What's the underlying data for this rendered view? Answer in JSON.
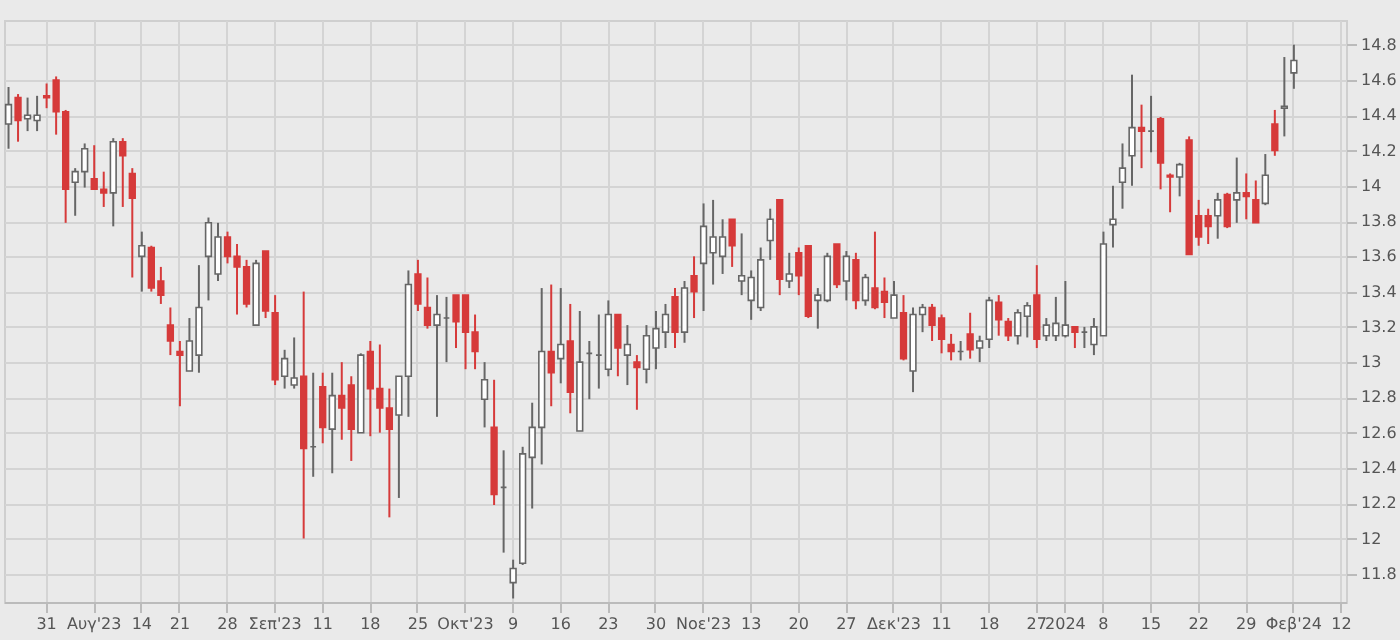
{
  "chart_data": {
    "type": "candlestick",
    "categories": [
      null,
      null,
      null,
      null,
      "31",
      null,
      null,
      null,
      null,
      "Αυγ'23",
      null,
      null,
      null,
      null,
      "14",
      null,
      null,
      null,
      "21",
      null,
      null,
      null,
      null,
      "28",
      null,
      null,
      null,
      null,
      "Σεπ'23",
      null,
      null,
      null,
      null,
      "11",
      null,
      null,
      null,
      null,
      "18",
      null,
      null,
      null,
      null,
      "25",
      null,
      null,
      null,
      null,
      "Οκτ'23",
      null,
      null,
      null,
      null,
      "9",
      null,
      null,
      null,
      null,
      "16",
      null,
      null,
      null,
      null,
      "23",
      null,
      null,
      null,
      null,
      "30",
      null,
      null,
      null,
      null,
      "Νοε'23",
      null,
      null,
      null,
      null,
      "13",
      null,
      null,
      null,
      null,
      "20",
      null,
      null,
      null,
      null,
      "27",
      null,
      null,
      null,
      null,
      "Δεκ'23",
      null,
      null,
      null,
      null,
      "11",
      null,
      null,
      null,
      null,
      "18",
      null,
      null,
      null,
      null,
      "27",
      null,
      null,
      "2024",
      null,
      null,
      null,
      "8",
      null,
      null,
      null,
      null,
      "15",
      null,
      null,
      null,
      null,
      "22",
      null,
      null,
      null,
      null,
      "29",
      null,
      null,
      null,
      null,
      "Φεβ'24",
      null,
      null,
      null,
      null,
      "12"
    ],
    "ohlc": [
      [
        14.35,
        14.56,
        14.21,
        14.46
      ],
      [
        14.5,
        14.52,
        14.25,
        14.37
      ],
      [
        14.38,
        14.5,
        14.31,
        14.4
      ],
      [
        14.37,
        14.51,
        14.31,
        14.4
      ],
      [
        14.51,
        14.58,
        14.44,
        14.5
      ],
      [
        14.6,
        14.62,
        14.29,
        14.42
      ],
      [
        14.42,
        14.43,
        13.79,
        13.98
      ],
      [
        14.02,
        14.1,
        13.83,
        14.08
      ],
      [
        14.08,
        14.24,
        13.99,
        14.21
      ],
      [
        14.04,
        14.23,
        13.98,
        13.98
      ],
      [
        13.98,
        14.08,
        13.88,
        13.96
      ],
      [
        13.96,
        14.27,
        13.77,
        14.25
      ],
      [
        14.25,
        14.27,
        13.88,
        14.17
      ],
      [
        14.07,
        14.1,
        13.48,
        13.93
      ],
      [
        13.6,
        13.74,
        13.4,
        13.66
      ],
      [
        13.65,
        13.66,
        13.4,
        13.42
      ],
      [
        13.46,
        13.54,
        13.33,
        13.38
      ],
      [
        13.21,
        13.31,
        13.04,
        13.12
      ],
      [
        13.06,
        13.12,
        12.75,
        13.04
      ],
      [
        12.95,
        13.25,
        12.95,
        13.12
      ],
      [
        13.04,
        13.55,
        12.94,
        13.31
      ],
      [
        13.6,
        13.82,
        13.35,
        13.79
      ],
      [
        13.5,
        13.79,
        13.46,
        13.71
      ],
      [
        13.71,
        13.74,
        13.56,
        13.6
      ],
      [
        13.6,
        13.67,
        13.27,
        13.54
      ],
      [
        13.54,
        13.58,
        13.31,
        13.33
      ],
      [
        13.21,
        13.58,
        13.21,
        13.56
      ],
      [
        13.63,
        13.63,
        13.25,
        13.29
      ],
      [
        13.28,
        13.38,
        12.87,
        12.9
      ],
      [
        12.92,
        13.07,
        12.85,
        13.02
      ],
      [
        12.87,
        13.14,
        12.85,
        12.91
      ],
      [
        12.92,
        13.4,
        12.0,
        12.51
      ],
      [
        12.52,
        12.94,
        12.35,
        12.52
      ],
      [
        12.86,
        12.94,
        12.54,
        12.63
      ],
      [
        12.62,
        12.94,
        12.37,
        12.81
      ],
      [
        12.81,
        13.0,
        12.56,
        12.74
      ],
      [
        12.87,
        12.92,
        12.44,
        12.62
      ],
      [
        12.6,
        13.05,
        12.6,
        13.04
      ],
      [
        13.06,
        13.12,
        12.58,
        12.85
      ],
      [
        12.85,
        13.1,
        12.6,
        12.74
      ],
      [
        12.74,
        12.85,
        12.12,
        12.62
      ],
      [
        12.7,
        12.92,
        12.23,
        12.92
      ],
      [
        12.92,
        13.52,
        12.69,
        13.44
      ],
      [
        13.5,
        13.58,
        13.29,
        13.33
      ],
      [
        13.31,
        13.48,
        13.19,
        13.21
      ],
      [
        13.21,
        13.38,
        12.69,
        13.27
      ],
      [
        13.25,
        13.37,
        13.0,
        13.25
      ],
      [
        13.38,
        13.38,
        13.08,
        13.23
      ],
      [
        13.38,
        13.38,
        12.96,
        13.17
      ],
      [
        13.17,
        13.27,
        12.96,
        13.06
      ],
      [
        12.79,
        13.0,
        12.63,
        12.9
      ],
      [
        12.63,
        12.9,
        12.19,
        12.25
      ],
      [
        12.29,
        12.5,
        11.92,
        12.29
      ],
      [
        11.75,
        11.88,
        11.66,
        11.83
      ],
      [
        11.86,
        12.52,
        11.85,
        12.48
      ],
      [
        12.46,
        12.77,
        12.17,
        12.63
      ],
      [
        12.63,
        13.42,
        12.42,
        13.06
      ],
      [
        13.06,
        13.44,
        12.75,
        12.94
      ],
      [
        13.02,
        13.42,
        12.88,
        13.1
      ],
      [
        13.12,
        13.33,
        12.71,
        12.83
      ],
      [
        12.61,
        13.29,
        12.61,
        13.0
      ],
      [
        13.05,
        13.12,
        12.79,
        13.05
      ],
      [
        13.04,
        13.27,
        12.85,
        13.04
      ],
      [
        12.96,
        13.35,
        12.92,
        13.27
      ],
      [
        13.27,
        13.27,
        12.92,
        13.08
      ],
      [
        13.04,
        13.21,
        12.87,
        13.1
      ],
      [
        13.0,
        13.04,
        12.73,
        12.97
      ],
      [
        12.96,
        13.21,
        12.88,
        13.15
      ],
      [
        13.08,
        13.29,
        12.96,
        13.19
      ],
      [
        13.17,
        13.33,
        13.08,
        13.27
      ],
      [
        13.37,
        13.42,
        13.08,
        13.17
      ],
      [
        13.17,
        13.46,
        13.11,
        13.42
      ],
      [
        13.49,
        13.6,
        13.25,
        13.4
      ],
      [
        13.56,
        13.9,
        13.29,
        13.77
      ],
      [
        13.62,
        13.92,
        13.44,
        13.71
      ],
      [
        13.6,
        13.81,
        13.5,
        13.71
      ],
      [
        13.81,
        13.81,
        13.54,
        13.66
      ],
      [
        13.46,
        13.73,
        13.38,
        13.49
      ],
      [
        13.35,
        13.52,
        13.24,
        13.48
      ],
      [
        13.31,
        13.65,
        13.29,
        13.58
      ],
      [
        13.69,
        13.87,
        13.58,
        13.81
      ],
      [
        13.92,
        13.92,
        13.38,
        13.47
      ],
      [
        13.46,
        13.62,
        13.42,
        13.5
      ],
      [
        13.62,
        13.65,
        13.38,
        13.49
      ],
      [
        13.66,
        13.66,
        13.25,
        13.26
      ],
      [
        13.35,
        13.42,
        13.19,
        13.38
      ],
      [
        13.35,
        13.62,
        13.34,
        13.6
      ],
      [
        13.67,
        13.67,
        13.42,
        13.44
      ],
      [
        13.46,
        13.63,
        13.35,
        13.6
      ],
      [
        13.58,
        13.62,
        13.3,
        13.35
      ],
      [
        13.35,
        13.5,
        13.32,
        13.48
      ],
      [
        13.42,
        13.74,
        13.3,
        13.31
      ],
      [
        13.4,
        13.48,
        13.25,
        13.34
      ],
      [
        13.25,
        13.46,
        13.25,
        13.38
      ],
      [
        13.28,
        13.38,
        13.01,
        13.02
      ],
      [
        12.95,
        13.31,
        12.83,
        13.27
      ],
      [
        13.27,
        13.33,
        13.17,
        13.31
      ],
      [
        13.31,
        13.33,
        13.12,
        13.21
      ],
      [
        13.25,
        13.27,
        13.05,
        13.13
      ],
      [
        13.1,
        13.16,
        13.01,
        13.06
      ],
      [
        13.06,
        13.12,
        13.01,
        13.06
      ],
      [
        13.16,
        13.28,
        13.02,
        13.07
      ],
      [
        13.08,
        13.15,
        13.0,
        13.12
      ],
      [
        13.13,
        13.37,
        13.08,
        13.35
      ],
      [
        13.34,
        13.38,
        13.15,
        13.24
      ],
      [
        13.23,
        13.25,
        13.12,
        13.15
      ],
      [
        13.15,
        13.3,
        13.1,
        13.28
      ],
      [
        13.26,
        13.34,
        13.14,
        13.32
      ],
      [
        13.38,
        13.55,
        13.08,
        13.13
      ],
      [
        13.15,
        13.25,
        13.12,
        13.21
      ],
      [
        13.15,
        13.37,
        13.12,
        13.22
      ],
      [
        13.15,
        13.46,
        13.14,
        13.21
      ],
      [
        13.2,
        13.2,
        13.08,
        13.17
      ],
      [
        13.17,
        13.2,
        13.08,
        13.17
      ],
      [
        13.1,
        13.25,
        13.04,
        13.2
      ],
      [
        13.15,
        13.74,
        13.15,
        13.67
      ],
      [
        13.78,
        14.0,
        13.65,
        13.81
      ],
      [
        14.02,
        14.24,
        13.87,
        14.1
      ],
      [
        14.17,
        14.63,
        14.0,
        14.33
      ],
      [
        14.33,
        14.46,
        14.1,
        14.31
      ],
      [
        14.31,
        14.51,
        14.19,
        14.31
      ],
      [
        14.38,
        14.39,
        13.98,
        14.13
      ],
      [
        14.06,
        14.07,
        13.85,
        14.05
      ],
      [
        14.05,
        14.13,
        13.94,
        14.12
      ],
      [
        14.26,
        14.28,
        13.61,
        13.61
      ],
      [
        13.83,
        13.92,
        13.66,
        13.71
      ],
      [
        13.83,
        13.87,
        13.67,
        13.77
      ],
      [
        13.83,
        13.96,
        13.7,
        13.92
      ],
      [
        13.95,
        13.96,
        13.76,
        13.77
      ],
      [
        13.92,
        14.16,
        13.79,
        13.96
      ],
      [
        13.96,
        14.07,
        13.81,
        13.94
      ],
      [
        13.92,
        14.03,
        13.79,
        13.79
      ],
      [
        13.9,
        14.18,
        13.89,
        14.06
      ],
      [
        14.35,
        14.43,
        14.17,
        14.2
      ],
      [
        14.44,
        14.73,
        14.28,
        14.45
      ],
      [
        14.64,
        14.8,
        14.55,
        14.71
      ],
      null,
      null,
      null,
      null,
      null
    ],
    "colors": [
      "#ffffff",
      "#d63a3a",
      "#ffffff",
      "#ffffff",
      "#d63a3a",
      "#d63a3a",
      "#d63a3a",
      "#ffffff",
      "#ffffff",
      "#d63a3a",
      "#d63a3a",
      "#ffffff",
      "#d63a3a",
      "#d63a3a",
      "#ffffff",
      "#d63a3a",
      "#d63a3a",
      "#d63a3a",
      "#d63a3a",
      "#ffffff",
      "#ffffff",
      "#ffffff",
      "#ffffff",
      "#d63a3a",
      "#d63a3a",
      "#d63a3a",
      "#ffffff",
      "#d63a3a",
      "#d63a3a",
      "#ffffff",
      "#ffffff",
      "#d63a3a",
      "#666666",
      "#d63a3a",
      "#ffffff",
      "#d63a3a",
      "#d63a3a",
      "#ffffff",
      "#d63a3a",
      "#d63a3a",
      "#d63a3a",
      "#ffffff",
      "#ffffff",
      "#d63a3a",
      "#d63a3a",
      "#ffffff",
      "#666666",
      "#d63a3a",
      "#d63a3a",
      "#d63a3a",
      "#ffffff",
      "#d63a3a",
      "#666666",
      "#ffffff",
      "#ffffff",
      "#ffffff",
      "#ffffff",
      "#d63a3a",
      "#ffffff",
      "#d63a3a",
      "#ffffff",
      "#666666",
      "#666666",
      "#ffffff",
      "#d63a3a",
      "#ffffff",
      "#d63a3a",
      "#ffffff",
      "#ffffff",
      "#ffffff",
      "#d63a3a",
      "#ffffff",
      "#d63a3a",
      "#ffffff",
      "#ffffff",
      "#ffffff",
      "#d63a3a",
      "#ffffff",
      "#ffffff",
      "#ffffff",
      "#ffffff",
      "#d63a3a",
      "#ffffff",
      "#d63a3a",
      "#d63a3a",
      "#ffffff",
      "#ffffff",
      "#d63a3a",
      "#ffffff",
      "#d63a3a",
      "#ffffff",
      "#d63a3a",
      "#d63a3a",
      "#ffffff",
      "#d63a3a",
      "#ffffff",
      "#ffffff",
      "#d63a3a",
      "#d63a3a",
      "#d63a3a",
      "#666666",
      "#d63a3a",
      "#ffffff",
      "#ffffff",
      "#d63a3a",
      "#d63a3a",
      "#ffffff",
      "#ffffff",
      "#d63a3a",
      "#ffffff",
      "#ffffff",
      "#ffffff",
      "#d63a3a",
      "#666666",
      "#ffffff",
      "#ffffff",
      "#ffffff",
      "#ffffff",
      "#ffffff",
      "#d63a3a",
      "#666666",
      "#d63a3a",
      "#d63a3a",
      "#ffffff",
      "#d63a3a",
      "#d63a3a",
      "#d63a3a",
      "#ffffff",
      "#d63a3a",
      "#ffffff",
      "#d63a3a",
      "#d63a3a",
      "#ffffff",
      "#d63a3a",
      "#ffffff",
      "#ffffff",
      null,
      null,
      null,
      null,
      null
    ],
    "ylim": [
      11.64,
      14.94
    ],
    "yticks": [
      11.8,
      12,
      12.2,
      12.4,
      12.6,
      12.8,
      13,
      13.2,
      13.4,
      13.6,
      13.8,
      14,
      14.2,
      14.4,
      14.6,
      14.8
    ],
    "grid": true
  }
}
